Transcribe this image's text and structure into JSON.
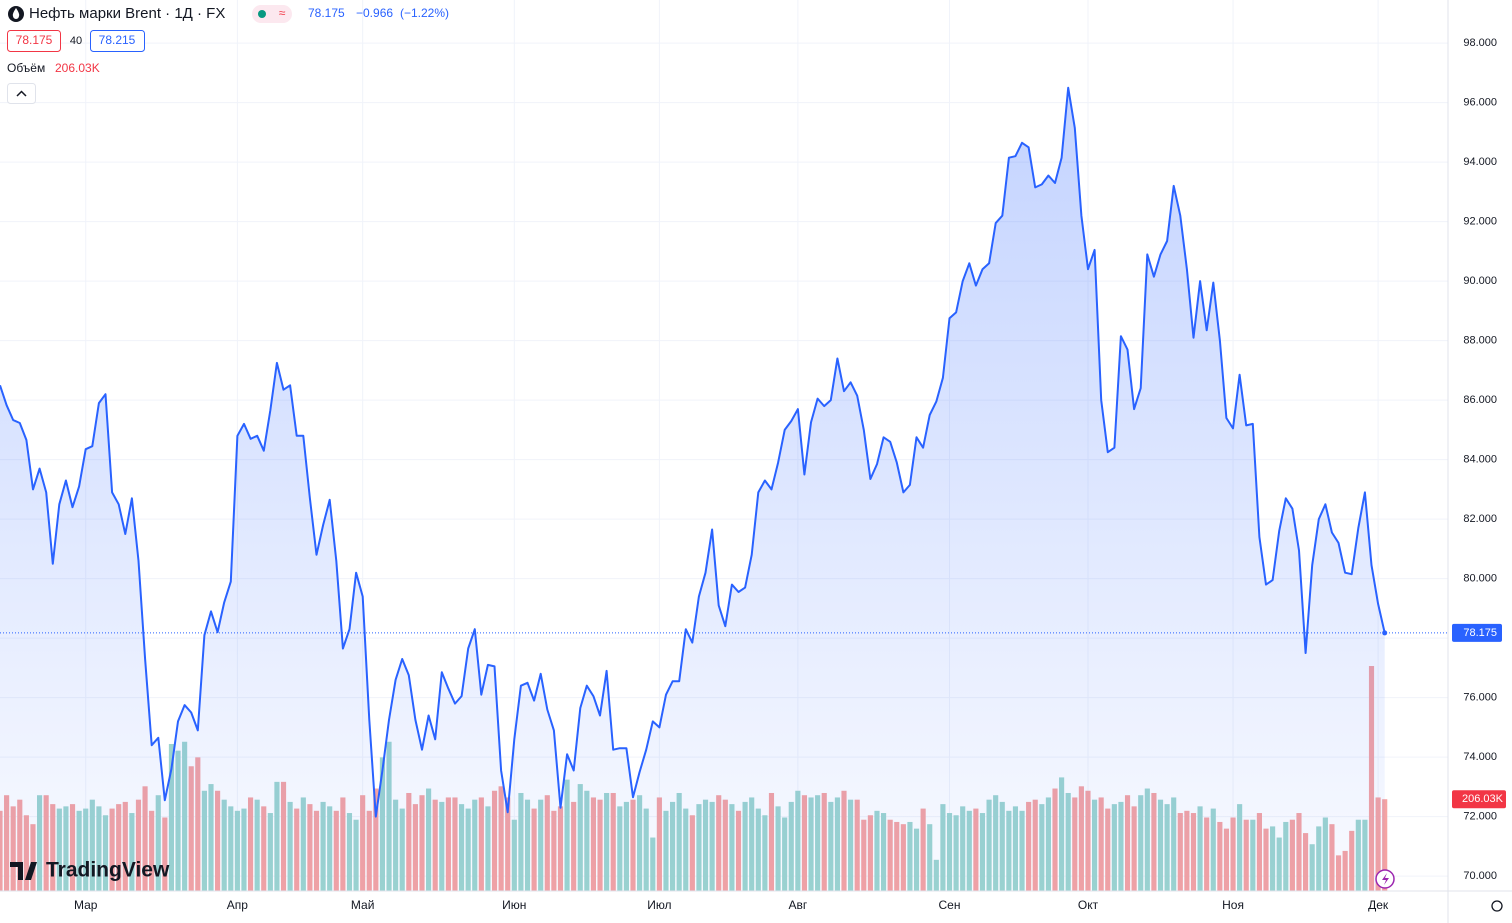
{
  "header": {
    "symbol": "Нефть марки Brent · 1Д · FX",
    "last": "78.175",
    "change": "−0.966",
    "change_pct": "(−1.22%)",
    "bid": "78.175",
    "spread": "40",
    "ask": "78.215",
    "volume_title": "Объём",
    "volume_value": "206.03K",
    "logo": "TradingView"
  },
  "chart_data": {
    "type": "area",
    "color": "#2962ff",
    "grid": true,
    "series": [
      {
        "name": "Brent",
        "color": "#2962ff",
        "values": [
          86.5,
          85.83,
          85.33,
          85.23,
          84.66,
          83.0,
          83.7,
          82.9,
          80.5,
          82.5,
          83.3,
          82.4,
          83.1,
          84.35,
          84.45,
          85.9,
          86.2,
          82.9,
          82.5,
          81.5,
          82.7,
          80.6,
          77.3,
          74.4,
          74.65,
          72.55,
          73.6,
          75.2,
          75.75,
          75.5,
          74.9,
          78.1,
          78.9,
          78.2,
          79.2,
          79.9,
          84.8,
          85.2,
          84.7,
          84.8,
          84.3,
          85.65,
          87.25,
          86.35,
          86.5,
          84.8,
          84.8,
          82.7,
          80.8,
          81.8,
          82.65,
          80.6,
          77.65,
          78.3,
          80.2,
          79.4,
          75.25,
          72.0,
          73.55,
          75.25,
          76.6,
          77.3,
          76.75,
          75.25,
          74.25,
          75.4,
          74.6,
          76.85,
          76.3,
          75.8,
          76.05,
          77.65,
          78.3,
          76.1,
          77.1,
          77.05,
          73.55,
          72.15,
          74.6,
          76.4,
          76.5,
          75.9,
          76.8,
          75.6,
          74.9,
          72.3,
          74.1,
          73.55,
          75.65,
          76.4,
          76.05,
          75.4,
          76.9,
          74.25,
          74.3,
          74.3,
          72.65,
          73.5,
          74.25,
          75.2,
          75.0,
          76.1,
          76.55,
          76.55,
          78.3,
          77.85,
          79.4,
          80.2,
          81.65,
          79.1,
          78.4,
          79.8,
          79.55,
          79.7,
          80.8,
          82.9,
          83.3,
          83.0,
          83.9,
          85.0,
          85.3,
          85.7,
          83.5,
          85.25,
          86.05,
          85.8,
          86.0,
          87.4,
          86.3,
          86.6,
          86.15,
          85.0,
          83.35,
          83.85,
          84.75,
          84.6,
          83.9,
          82.9,
          83.15,
          84.75,
          84.4,
          85.5,
          85.95,
          86.75,
          88.75,
          88.95,
          90.0,
          90.6,
          89.85,
          90.4,
          90.6,
          91.95,
          92.2,
          94.15,
          94.2,
          94.65,
          94.5,
          93.15,
          93.25,
          93.55,
          93.3,
          94.15,
          96.5,
          95.15,
          92.2,
          90.4,
          91.05,
          86.0,
          84.25,
          84.4,
          88.15,
          87.7,
          85.7,
          86.4,
          90.9,
          90.15,
          90.9,
          91.35,
          93.2,
          92.2,
          90.4,
          88.1,
          90.0,
          88.35,
          89.95,
          88.0,
          85.4,
          85.05,
          86.85,
          85.15,
          85.2,
          81.4,
          79.8,
          79.95,
          81.6,
          82.7,
          82.35,
          80.95,
          77.5,
          80.45,
          82.0,
          82.5,
          81.55,
          81.2,
          80.2,
          80.15,
          81.7,
          82.9,
          80.45,
          79.15,
          78.175
        ],
        "last_label": "78.175"
      }
    ],
    "volume": {
      "name": "Объём",
      "up_color": "#9dd5cf",
      "down_color": "#f5a3a3",
      "label_color": "#f23645",
      "vlim": [
        0,
        2000000
      ],
      "values": [
        180000,
        215000,
        190000,
        205000,
        170000,
        150000,
        215000,
        215000,
        195000,
        185000,
        190000,
        195000,
        180000,
        185000,
        205000,
        190000,
        170000,
        185000,
        195000,
        200000,
        175000,
        205000,
        235000,
        180000,
        215000,
        165000,
        330000,
        315000,
        335000,
        280000,
        300000,
        225000,
        240000,
        225000,
        205000,
        190000,
        180000,
        185000,
        210000,
        205000,
        190000,
        175000,
        245000,
        245000,
        200000,
        185000,
        210000,
        195000,
        180000,
        200000,
        190000,
        180000,
        210000,
        175000,
        160000,
        215000,
        180000,
        230000,
        300000,
        335000,
        205000,
        185000,
        220000,
        195000,
        215000,
        230000,
        205000,
        200000,
        210000,
        210000,
        195000,
        185000,
        205000,
        210000,
        190000,
        225000,
        235000,
        210000,
        160000,
        220000,
        205000,
        185000,
        205000,
        215000,
        180000,
        190000,
        250000,
        200000,
        240000,
        225000,
        210000,
        205000,
        220000,
        220000,
        190000,
        200000,
        205000,
        215000,
        185000,
        120000,
        210000,
        180000,
        200000,
        220000,
        185000,
        170000,
        195000,
        205000,
        200000,
        215000,
        205000,
        195000,
        180000,
        200000,
        210000,
        185000,
        170000,
        220000,
        190000,
        165000,
        200000,
        225000,
        215000,
        210000,
        215000,
        220000,
        200000,
        210000,
        225000,
        205000,
        205000,
        160000,
        170000,
        180000,
        175000,
        160000,
        155000,
        150000,
        155000,
        140000,
        185000,
        150000,
        70000,
        195000,
        175000,
        170000,
        190000,
        180000,
        185000,
        175000,
        205000,
        215000,
        200000,
        180000,
        190000,
        180000,
        200000,
        205000,
        195000,
        210000,
        230000,
        255000,
        220000,
        210000,
        235000,
        225000,
        205000,
        210000,
        185000,
        195000,
        200000,
        215000,
        190000,
        215000,
        230000,
        220000,
        205000,
        195000,
        210000,
        175000,
        180000,
        175000,
        190000,
        165000,
        185000,
        155000,
        140000,
        165000,
        195000,
        160000,
        160000,
        175000,
        140000,
        145000,
        120000,
        155000,
        160000,
        175000,
        130000,
        105000,
        145000,
        165000,
        150000,
        80000,
        90000,
        135000,
        160000,
        160000,
        505000,
        210000,
        206030
      ],
      "last_label": "206.03K"
    },
    "xlim": [
      0,
      219.6
    ],
    "xticks": [
      {
        "value": 13,
        "label": "Мар"
      },
      {
        "value": 36,
        "label": "Апр"
      },
      {
        "value": 55,
        "label": "Май"
      },
      {
        "value": 78,
        "label": "Июн"
      },
      {
        "value": 100,
        "label": "Июл"
      },
      {
        "value": 121,
        "label": "Авг"
      },
      {
        "value": 144,
        "label": "Сен"
      },
      {
        "value": 165,
        "label": "Окт"
      },
      {
        "value": 187,
        "label": "Ноя"
      },
      {
        "value": 209,
        "label": "Дек"
      }
    ],
    "ylim": [
      69.5,
      99.45
    ],
    "yticks": [
      {
        "value": 70,
        "label": "70.000"
      },
      {
        "value": 72,
        "label": "72.000"
      },
      {
        "value": 74,
        "label": "74.000"
      },
      {
        "value": 76,
        "label": "76.000"
      },
      {
        "value": 78,
        "label": "78.000"
      },
      {
        "value": 80,
        "label": "80.000"
      },
      {
        "value": 82,
        "label": "82.000"
      },
      {
        "value": 84,
        "label": "84.000"
      },
      {
        "value": 86,
        "label": "86.000"
      },
      {
        "value": 88,
        "label": "88.000"
      },
      {
        "value": 90,
        "label": "90.000"
      },
      {
        "value": 92,
        "label": "92.000"
      },
      {
        "value": 94,
        "label": "94.000"
      },
      {
        "value": 96,
        "label": "96.000"
      },
      {
        "value": 98,
        "label": "98.000"
      }
    ]
  }
}
